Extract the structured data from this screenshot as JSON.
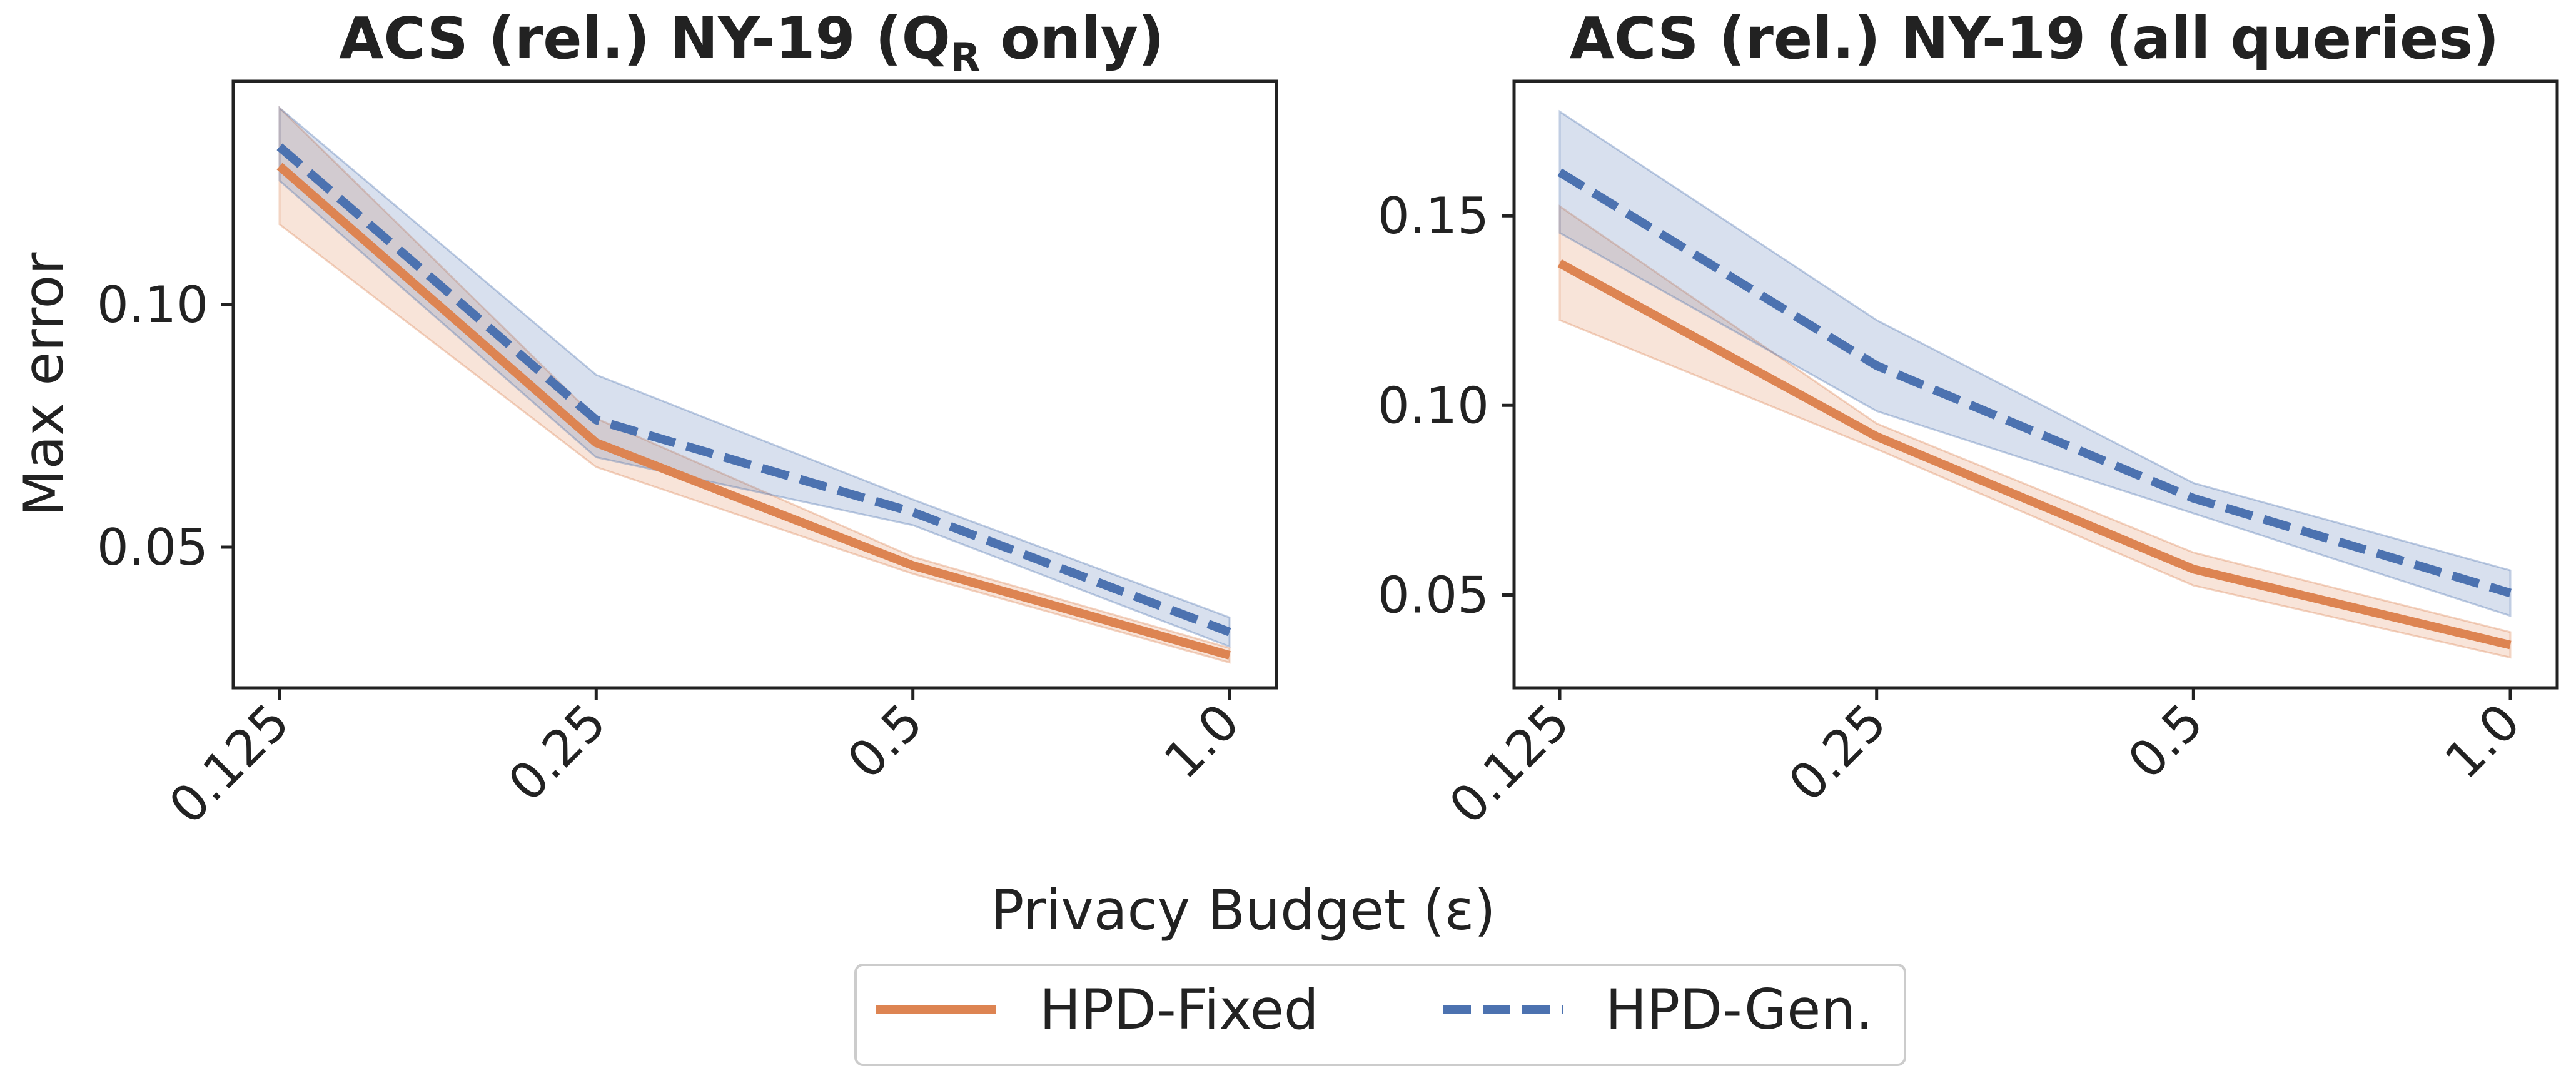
{
  "figure": {
    "xlabel": "Privacy Budget (ε)",
    "ylabel": "Max error",
    "legend": {
      "placement": "bottom-center",
      "entries": [
        {
          "label": "HPD-Fixed",
          "color": "#dd8452",
          "style": "solid"
        },
        {
          "label": "HPD-Gen.",
          "color": "#4c72b0",
          "style": "dashed"
        }
      ]
    }
  },
  "chart_data": [
    {
      "type": "line",
      "title_main": "ACS (rel.) NY-19 (Q",
      "title_sub": "R",
      "title_end": " only)",
      "categories": [
        "0.125",
        "0.25",
        "0.5",
        "1.0"
      ],
      "ylim": [
        0.021,
        0.146
      ],
      "yticks": [
        0.05,
        0.1
      ],
      "ytick_labels": [
        "0.05",
        "0.10"
      ],
      "grid": false,
      "series": [
        {
          "name": "HPD-Fixed",
          "color": "#dd8452",
          "style": "solid",
          "values": [
            0.1285,
            0.0715,
            0.0462,
            0.0277
          ],
          "lower": [
            0.1165,
            0.0665,
            0.0445,
            0.0262
          ],
          "upper": [
            0.1405,
            0.0765,
            0.048,
            0.0292
          ]
        },
        {
          "name": "HPD-Gen.",
          "color": "#4c72b0",
          "style": "dashed",
          "values": [
            0.1325,
            0.0762,
            0.0572,
            0.0325
          ],
          "lower": [
            0.1255,
            0.0685,
            0.0545,
            0.0295
          ],
          "upper": [
            0.1405,
            0.0855,
            0.0598,
            0.0355
          ]
        }
      ]
    },
    {
      "type": "line",
      "title_main": "ACS (rel.) NY-19 (all queries)",
      "title_sub": "",
      "title_end": "",
      "categories": [
        "0.125",
        "0.25",
        "0.5",
        "1.0"
      ],
      "ylim": [
        0.0255,
        0.1855
      ],
      "yticks": [
        0.05,
        0.1,
        0.15
      ],
      "ytick_labels": [
        "0.05",
        "0.10",
        "0.15"
      ],
      "grid": false,
      "series": [
        {
          "name": "HPD-Fixed",
          "color": "#dd8452",
          "style": "solid",
          "values": [
            0.1375,
            0.0918,
            0.0568,
            0.0368
          ],
          "lower": [
            0.1225,
            0.0885,
            0.0525,
            0.0335
          ],
          "upper": [
            0.1525,
            0.0952,
            0.0612,
            0.0402
          ]
        },
        {
          "name": "HPD-Gen.",
          "color": "#4c72b0",
          "style": "dashed",
          "values": [
            0.1615,
            0.1105,
            0.0755,
            0.0505
          ],
          "lower": [
            0.1455,
            0.0985,
            0.0715,
            0.0445
          ],
          "upper": [
            0.1775,
            0.1225,
            0.0795,
            0.0565
          ]
        }
      ]
    }
  ]
}
